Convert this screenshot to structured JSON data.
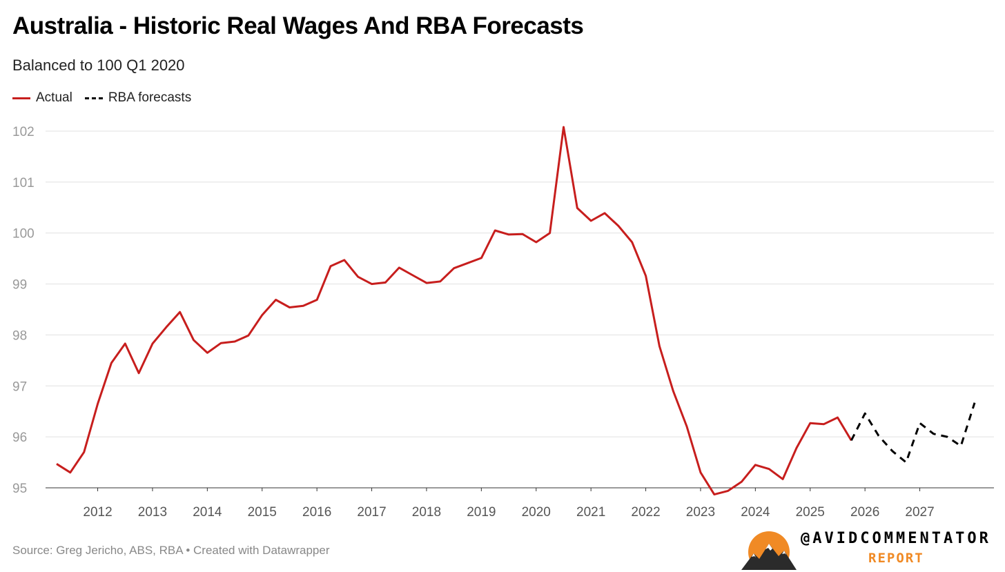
{
  "header": {
    "title": "Australia - Historic Real Wages And RBA Forecasts",
    "subtitle": "Balanced to 100 Q1 2020"
  },
  "legend": {
    "items": [
      {
        "label": "Actual",
        "style": "solid",
        "color": "#c71e1d"
      },
      {
        "label": "RBA forecasts",
        "style": "dashed",
        "color": "#000000"
      }
    ]
  },
  "footer": {
    "source": "Source: Greg Jericho, ABS, RBA • Created with Datawrapper",
    "brand_handle": "@AVIDCOMMENTATOR",
    "brand_report": "REPORT",
    "brand_logo_icon": "mountain-sunset-logo-icon"
  },
  "chart_data": {
    "type": "line",
    "title": "Australia - Historic Real Wages And RBA Forecasts",
    "subtitle": "Balanced to 100 Q1 2020",
    "xlabel": "",
    "ylabel": "",
    "ylim": [
      95,
      102
    ],
    "yticks": [
      95,
      96,
      97,
      98,
      99,
      100,
      101,
      102
    ],
    "xticks": [
      "2012",
      "2013",
      "2014",
      "2015",
      "2016",
      "2017",
      "2018",
      "2019",
      "2020",
      "2021",
      "2022",
      "2023",
      "2024",
      "2025",
      "2026",
      "2027"
    ],
    "grid": "horizontal",
    "legend_position": "top-left",
    "x_start": "Q2 2011",
    "series": [
      {
        "name": "Actual",
        "color": "#c71e1d",
        "style": "solid",
        "start_index": 0,
        "values": [
          95.47,
          95.3,
          95.7,
          96.65,
          97.45,
          97.83,
          97.25,
          97.83,
          98.15,
          98.45,
          97.9,
          97.65,
          97.84,
          97.87,
          97.99,
          98.39,
          98.69,
          98.54,
          98.57,
          98.69,
          99.35,
          99.47,
          99.14,
          99.0,
          99.03,
          99.32,
          99.17,
          99.02,
          99.05,
          99.31,
          99.41,
          99.51,
          100.05,
          99.97,
          99.98,
          99.82,
          100.0,
          102.08,
          100.49,
          100.24,
          100.39,
          100.14,
          99.82,
          99.16,
          97.78,
          96.9,
          96.2,
          95.3,
          94.87,
          94.94,
          95.12,
          95.45,
          95.37,
          95.17,
          95.78,
          96.27,
          96.25,
          96.38,
          95.93
        ]
      },
      {
        "name": "RBA forecasts",
        "color": "#000000",
        "style": "dashed",
        "start_index": 58,
        "values": [
          95.93,
          96.46,
          96.02,
          95.72,
          95.5,
          96.27,
          96.06,
          96.0,
          95.82,
          96.67
        ]
      }
    ]
  }
}
